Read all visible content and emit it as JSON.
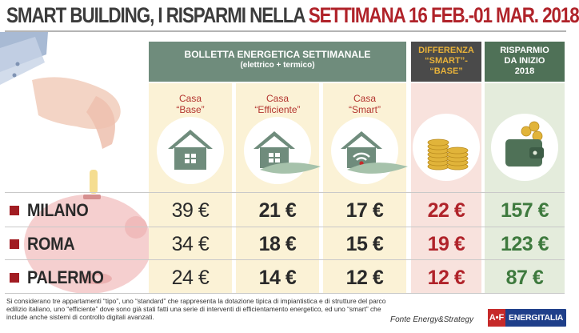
{
  "title": {
    "part1": "SMART BUILDING, I RISPARMI NELLA ",
    "part2": "SETTIMANA 16 FEB.-01 MAR. 2018"
  },
  "header": {
    "bolletta_line1": "BOLLETTA ENERGETICA SETTIMANALE",
    "bolletta_line2": "(elettrico + termico)",
    "differenza": [
      "DIFFERENZA",
      "“SMART”-",
      "“BASE”"
    ],
    "risparmio": [
      "RISPARMIO",
      "DA INIZIO",
      "2018"
    ]
  },
  "houses": [
    {
      "line1": "Casa",
      "line2": "“Base”",
      "icon": "house-icon"
    },
    {
      "line1": "Casa",
      "line2": "“Efficiente”",
      "icon": "house-leaf-icon"
    },
    {
      "line1": "Casa",
      "line2": "“Smart”",
      "icon": "house-wifi-icon"
    }
  ],
  "extra_icons": [
    "coins-icon",
    "wallet-icon",
    "piggy-bank-icon",
    "hand-icon"
  ],
  "rows": [
    {
      "city": "MILANO",
      "base": "39 €",
      "efficiente": "21 €",
      "smart": "17 €",
      "differenza": "22 €",
      "risparmio": "157 €"
    },
    {
      "city": "ROMA",
      "base": "34 €",
      "efficiente": "18 €",
      "smart": "15 €",
      "differenza": "19 €",
      "risparmio": "123 €"
    },
    {
      "city": "PALERMO",
      "base": "24 €",
      "efficiente": "14 €",
      "smart": "12 €",
      "differenza": "12 €",
      "risparmio": "87 €"
    }
  ],
  "footnote": "Si considerano tre appartamenti “tipo”, uno “standard” che rappresenta la dotazione tipica di impiantistica e di strutture del parco edilizio italiano, uno “efficiente” dove sono già stati fatti una serie di interventi di efficientamento energetico, ed uno “smart” che include anche sistemi di controllo digitali avanzati.",
  "source": "Fonte Energy&Strategy",
  "logo": {
    "mark": "A•F",
    "text": "ENERGITALIA"
  },
  "colors": {
    "accent_red": "#b0232a",
    "header_green": "#6f8c7c",
    "risparmio_green": "#3e7a3e",
    "panel_cream": "#fbf2d6",
    "panel_pink": "#f8e2dd",
    "panel_lightgreen": "#e4ecdc"
  }
}
